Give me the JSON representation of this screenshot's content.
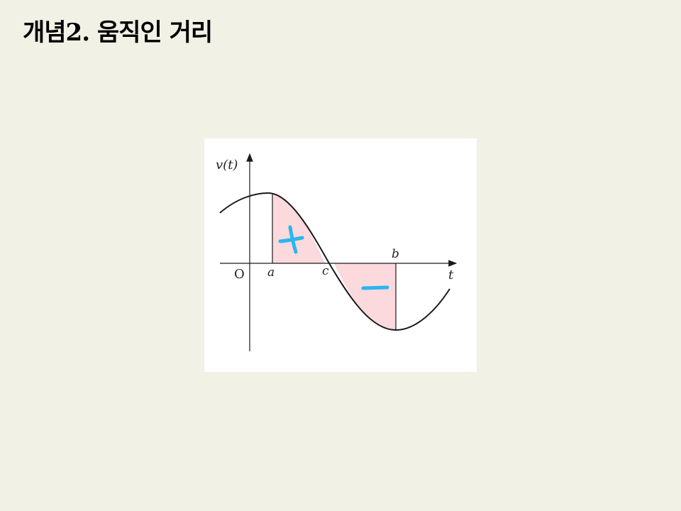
{
  "title": "개념2. 움직인 거리",
  "diagram": {
    "y_axis_label": "v(t)",
    "x_axis_label": "t",
    "origin_label": "O",
    "point_labels": {
      "a": "a",
      "c": "c",
      "b": "b"
    },
    "annotations": {
      "positive_area": "+",
      "negative_area": "−"
    },
    "colors": {
      "curve": "#1a1a1a",
      "shade": "#fbd9dd",
      "annotation": "#29b6f0"
    }
  }
}
